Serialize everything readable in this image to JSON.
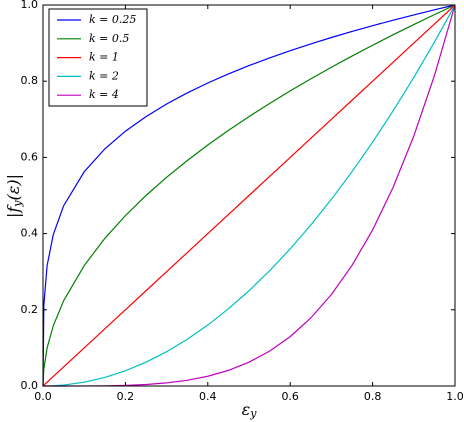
{
  "chart_data": {
    "type": "line",
    "x_label": {
      "base": "ε",
      "sub": "y"
    },
    "y_label": {
      "base": "|f",
      "sub": "y",
      "rest": "(ε)|"
    },
    "x": [
      0,
      0.002,
      0.01,
      0.025,
      0.05,
      0.1,
      0.15,
      0.2,
      0.25,
      0.3,
      0.35,
      0.4,
      0.45,
      0.5,
      0.55,
      0.6,
      0.65,
      0.7,
      0.75,
      0.8,
      0.85,
      0.9,
      0.95,
      1
    ],
    "series": [
      {
        "name": "k = 0.25",
        "color": "#0000ff",
        "values": [
          0,
          0.2115,
          0.3162,
          0.3976,
          0.4729,
          0.5623,
          0.6223,
          0.6687,
          0.7071,
          0.7401,
          0.7692,
          0.7953,
          0.819,
          0.8409,
          0.8612,
          0.8801,
          0.8979,
          0.9147,
          0.9306,
          0.9457,
          0.9602,
          0.974,
          0.9873,
          1
        ]
      },
      {
        "name": "k = 0.5",
        "color": "#008000",
        "values": [
          0,
          0.0447,
          0.1,
          0.1581,
          0.2236,
          0.3162,
          0.3873,
          0.4472,
          0.5,
          0.5477,
          0.5916,
          0.6325,
          0.6708,
          0.7071,
          0.7416,
          0.7746,
          0.8062,
          0.8367,
          0.866,
          0.8944,
          0.922,
          0.9487,
          0.9747,
          1
        ]
      },
      {
        "name": "k = 1",
        "color": "#ff0000",
        "values": [
          0,
          0.002,
          0.01,
          0.025,
          0.05,
          0.1,
          0.15,
          0.2,
          0.25,
          0.3,
          0.35,
          0.4,
          0.45,
          0.5,
          0.55,
          0.6,
          0.65,
          0.7,
          0.75,
          0.8,
          0.85,
          0.9,
          0.95,
          1
        ]
      },
      {
        "name": "k = 2",
        "color": "#00bfbf",
        "values": [
          0,
          0,
          0.0001,
          0.0006,
          0.0025,
          0.01,
          0.0225,
          0.04,
          0.0625,
          0.09,
          0.1225,
          0.16,
          0.2025,
          0.25,
          0.3025,
          0.36,
          0.4225,
          0.49,
          0.5625,
          0.64,
          0.7225,
          0.81,
          0.9025,
          1
        ]
      },
      {
        "name": "k = 4",
        "color": "#bf00bf",
        "values": [
          0,
          0,
          0,
          0,
          0,
          0.0001,
          0.0005,
          0.0016,
          0.0039,
          0.0081,
          0.015,
          0.0256,
          0.041,
          0.0625,
          0.0915,
          0.1296,
          0.1785,
          0.2401,
          0.3164,
          0.4096,
          0.522,
          0.6561,
          0.8145,
          1
        ]
      }
    ],
    "xlim": [
      0,
      1
    ],
    "ylim": [
      0,
      1
    ],
    "xticks": [
      {
        "value": 0,
        "label": "0.0"
      },
      {
        "value": 0.2,
        "label": "0.2"
      },
      {
        "value": 0.4,
        "label": "0.4"
      },
      {
        "value": 0.6,
        "label": "0.6"
      },
      {
        "value": 0.8,
        "label": "0.8"
      },
      {
        "value": 1,
        "label": "1.0"
      }
    ],
    "yticks": [
      {
        "value": 0,
        "label": "0.0"
      },
      {
        "value": 0.2,
        "label": "0.2"
      },
      {
        "value": 0.4,
        "label": "0.4"
      },
      {
        "value": 0.6,
        "label": "0.6"
      },
      {
        "value": 0.8,
        "label": "0.8"
      },
      {
        "value": 1,
        "label": "1.0"
      }
    ],
    "legend": "upper left",
    "grid": false
  }
}
